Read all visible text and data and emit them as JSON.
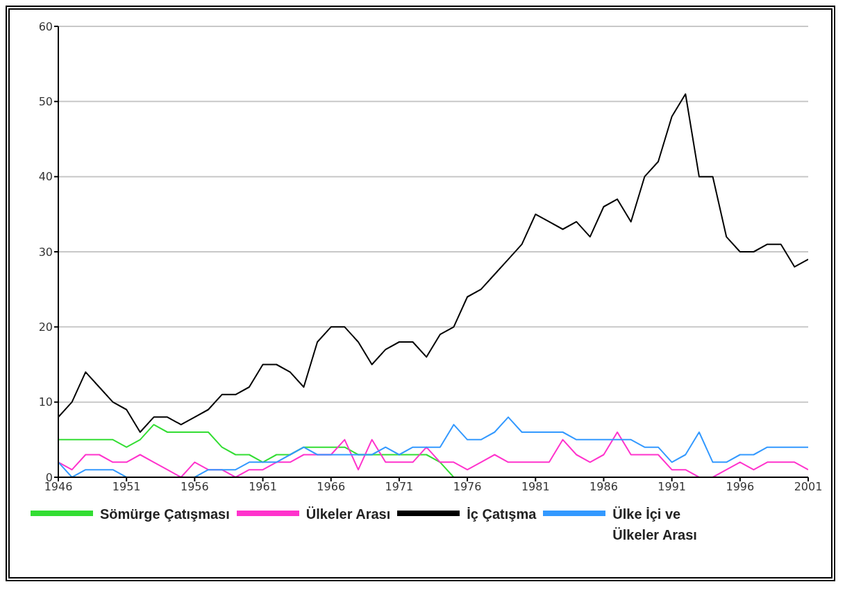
{
  "chart_data": {
    "type": "line",
    "x": [
      1946,
      1947,
      1948,
      1949,
      1950,
      1951,
      1952,
      1953,
      1954,
      1955,
      1956,
      1957,
      1958,
      1959,
      1960,
      1961,
      1962,
      1963,
      1964,
      1965,
      1966,
      1967,
      1968,
      1969,
      1970,
      1971,
      1972,
      1973,
      1974,
      1975,
      1976,
      1977,
      1978,
      1979,
      1980,
      1981,
      1982,
      1983,
      1984,
      1985,
      1986,
      1987,
      1988,
      1989,
      1990,
      1991,
      1992,
      1993,
      1994,
      1995,
      1996,
      1997,
      1998,
      1999,
      2000,
      2001
    ],
    "series": [
      {
        "name": "Sömürge Çatışması",
        "color": "#33dd33",
        "values": [
          5,
          5,
          5,
          5,
          5,
          4,
          5,
          7,
          6,
          6,
          6,
          6,
          4,
          3,
          3,
          2,
          3,
          3,
          4,
          4,
          4,
          4,
          3,
          3,
          3,
          3,
          3,
          3,
          2,
          0,
          null,
          null,
          null,
          null,
          null,
          null,
          null,
          null,
          null,
          null,
          null,
          null,
          null,
          null,
          null,
          null,
          null,
          null,
          null,
          null,
          null,
          null,
          null,
          null,
          null,
          null
        ]
      },
      {
        "name": "Ülkeler Arası",
        "color": "#ff33cc",
        "values": [
          2,
          1,
          3,
          3,
          2,
          2,
          3,
          2,
          1,
          0,
          2,
          1,
          1,
          0,
          1,
          1,
          2,
          2,
          3,
          3,
          3,
          5,
          1,
          5,
          2,
          2,
          2,
          4,
          2,
          2,
          1,
          2,
          3,
          2,
          2,
          2,
          2,
          5,
          3,
          2,
          3,
          6,
          3,
          3,
          3,
          1,
          1,
          0,
          0,
          1,
          2,
          1,
          2,
          2,
          2,
          1
        ]
      },
      {
        "name": "İç Çatışma",
        "color": "#000000",
        "values": [
          8,
          10,
          14,
          12,
          10,
          9,
          6,
          8,
          8,
          7,
          8,
          9,
          11,
          11,
          12,
          15,
          15,
          14,
          12,
          18,
          20,
          20,
          18,
          15,
          17,
          18,
          18,
          16,
          19,
          20,
          24,
          25,
          27,
          29,
          31,
          35,
          34,
          33,
          34,
          32,
          36,
          37,
          34,
          40,
          42,
          48,
          51,
          40,
          40,
          32,
          30,
          30,
          31,
          31,
          28,
          29
        ]
      },
      {
        "name": "Ülke İçi ve Ülkeler Arası",
        "color": "#3399ff",
        "values": [
          2,
          0,
          1,
          1,
          1,
          0,
          null,
          null,
          null,
          null,
          0,
          1,
          1,
          1,
          2,
          2,
          2,
          3,
          4,
          3,
          3,
          3,
          3,
          3,
          4,
          3,
          4,
          4,
          4,
          7,
          5,
          5,
          6,
          8,
          6,
          6,
          6,
          6,
          5,
          5,
          5,
          5,
          5,
          4,
          4,
          2,
          3,
          6,
          2,
          2,
          3,
          3,
          4,
          4,
          4,
          4
        ]
      }
    ],
    "xlim": [
      1946,
      2001
    ],
    "xticks": [
      1946,
      1951,
      1956,
      1961,
      1966,
      1971,
      1976,
      1981,
      1986,
      1991,
      1996,
      2001
    ],
    "ylim": [
      0,
      60
    ],
    "yticks": [
      0,
      10,
      20,
      30,
      40,
      50,
      60
    ],
    "grid": "y",
    "legend": "bottom",
    "marker": "none",
    "line_style": "solid"
  }
}
